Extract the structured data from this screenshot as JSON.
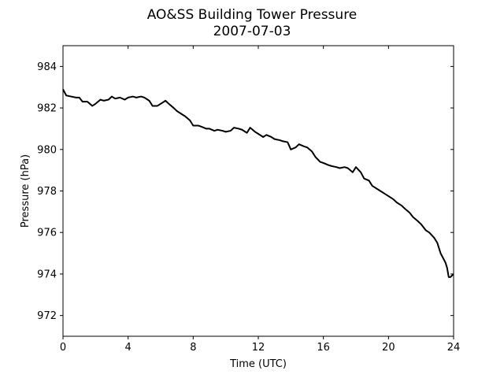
{
  "chart_data": {
    "type": "line",
    "title": "AO&SS Building Tower Pressure",
    "subtitle": "2007-07-03",
    "xlabel": "Time (UTC)",
    "ylabel": "Pressure (hPa)",
    "xlim": [
      0,
      24
    ],
    "ylim": [
      971,
      985
    ],
    "xticks": [
      0,
      4,
      8,
      12,
      16,
      20,
      24
    ],
    "yticks": [
      972,
      974,
      976,
      978,
      980,
      982,
      984
    ],
    "grid": false,
    "line_color": "#000000",
    "series": [
      {
        "x": [
          0,
          0.2,
          0.5,
          0.8,
          1.0,
          1.2,
          1.5,
          1.8,
          2.0,
          2.3,
          2.5,
          2.8,
          3.0,
          3.2,
          3.5,
          3.8,
          4.0,
          4.3,
          4.5,
          4.8,
          5.0,
          5.3,
          5.5,
          5.8,
          6.0,
          6.3,
          6.5,
          6.8,
          7.0,
          7.3,
          7.5,
          7.8,
          8.0,
          8.3,
          8.5,
          8.8,
          9.0,
          9.3,
          9.5,
          9.8,
          10.0,
          10.3,
          10.5,
          10.8,
          11.0,
          11.3,
          11.5,
          11.8,
          12.0,
          12.3,
          12.5,
          12.8,
          13.0,
          13.3,
          13.5,
          13.8,
          14.0,
          14.3,
          14.5,
          14.8,
          15.0,
          15.3,
          15.5,
          15.8,
          16.0,
          16.3,
          16.5,
          16.8,
          17.0,
          17.3,
          17.5,
          17.8,
          18.0,
          18.3,
          18.5,
          18.8,
          19.0,
          19.3,
          19.5,
          19.8,
          20.0,
          20.3,
          20.5,
          20.8,
          21.0,
          21.3,
          21.5,
          21.8,
          22.0,
          22.3,
          22.5,
          22.8,
          23.0,
          23.2,
          23.4,
          23.5,
          23.6,
          23.7,
          23.8,
          24.0
        ],
        "y": [
          982.9,
          982.6,
          982.55,
          982.5,
          982.5,
          982.3,
          982.3,
          982.1,
          982.2,
          982.4,
          982.35,
          982.4,
          982.55,
          982.45,
          982.5,
          982.4,
          982.5,
          982.55,
          982.5,
          982.55,
          982.5,
          982.35,
          982.1,
          982.1,
          982.2,
          982.35,
          982.2,
          982.0,
          981.85,
          981.7,
          981.6,
          981.4,
          981.15,
          981.15,
          981.1,
          981.0,
          981.0,
          980.9,
          980.95,
          980.9,
          980.85,
          980.9,
          981.05,
          981.0,
          980.95,
          980.8,
          981.05,
          980.85,
          980.75,
          980.6,
          980.7,
          980.6,
          980.5,
          980.45,
          980.4,
          980.35,
          980.0,
          980.1,
          980.25,
          980.15,
          980.1,
          979.9,
          979.65,
          979.4,
          979.35,
          979.25,
          979.2,
          979.15,
          979.1,
          979.15,
          979.1,
          978.9,
          979.15,
          978.9,
          978.6,
          978.5,
          978.25,
          978.1,
          978.0,
          977.85,
          977.75,
          977.6,
          977.45,
          977.3,
          977.15,
          976.95,
          976.75,
          976.55,
          976.4,
          976.1,
          976.0,
          975.75,
          975.5,
          975.0,
          974.7,
          974.55,
          974.3,
          973.85,
          973.85,
          974.0
        ]
      }
    ]
  }
}
